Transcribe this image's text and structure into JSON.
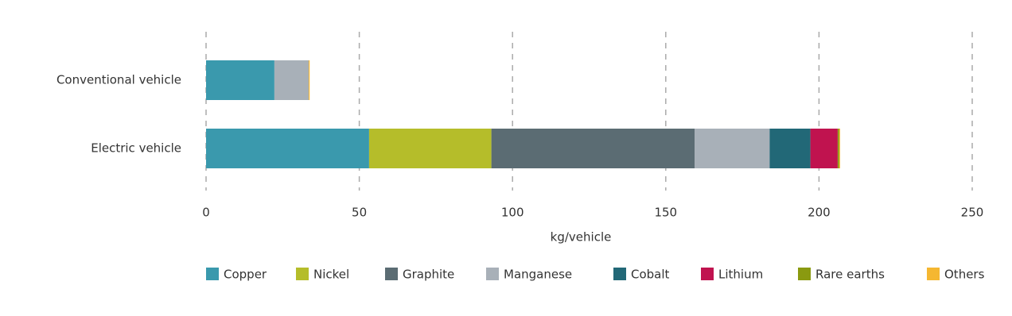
{
  "chart_data": {
    "type": "stacked-bar-horizontal",
    "categories": [
      "Conventional vehicle",
      "Electric vehicle"
    ],
    "series": [
      {
        "name": "Copper",
        "color": "#3a99ad",
        "values": [
          22.3,
          53.2
        ]
      },
      {
        "name": "Nickel",
        "color": "#b5bd2a",
        "values": [
          0,
          39.9
        ]
      },
      {
        "name": "Graphite",
        "color": "#5b6c73",
        "values": [
          0,
          66.3
        ]
      },
      {
        "name": "Manganese",
        "color": "#a8b0b8",
        "values": [
          11.2,
          24.5
        ]
      },
      {
        "name": "Cobalt",
        "color": "#226877",
        "values": [
          0,
          13.3
        ]
      },
      {
        "name": "Lithium",
        "color": "#c0134f",
        "values": [
          0,
          8.9
        ]
      },
      {
        "name": "Rare earths",
        "color": "#8a9a10",
        "values": [
          0,
          0.5
        ]
      },
      {
        "name": "Others",
        "color": "#f5b731",
        "values": [
          0.3,
          0.3
        ]
      }
    ],
    "x_label": "kg/vehicle",
    "xlim": [
      0,
      250
    ],
    "xticks": [
      0,
      50,
      100,
      150,
      200,
      250
    ],
    "grid": true,
    "legend": "bottom"
  }
}
